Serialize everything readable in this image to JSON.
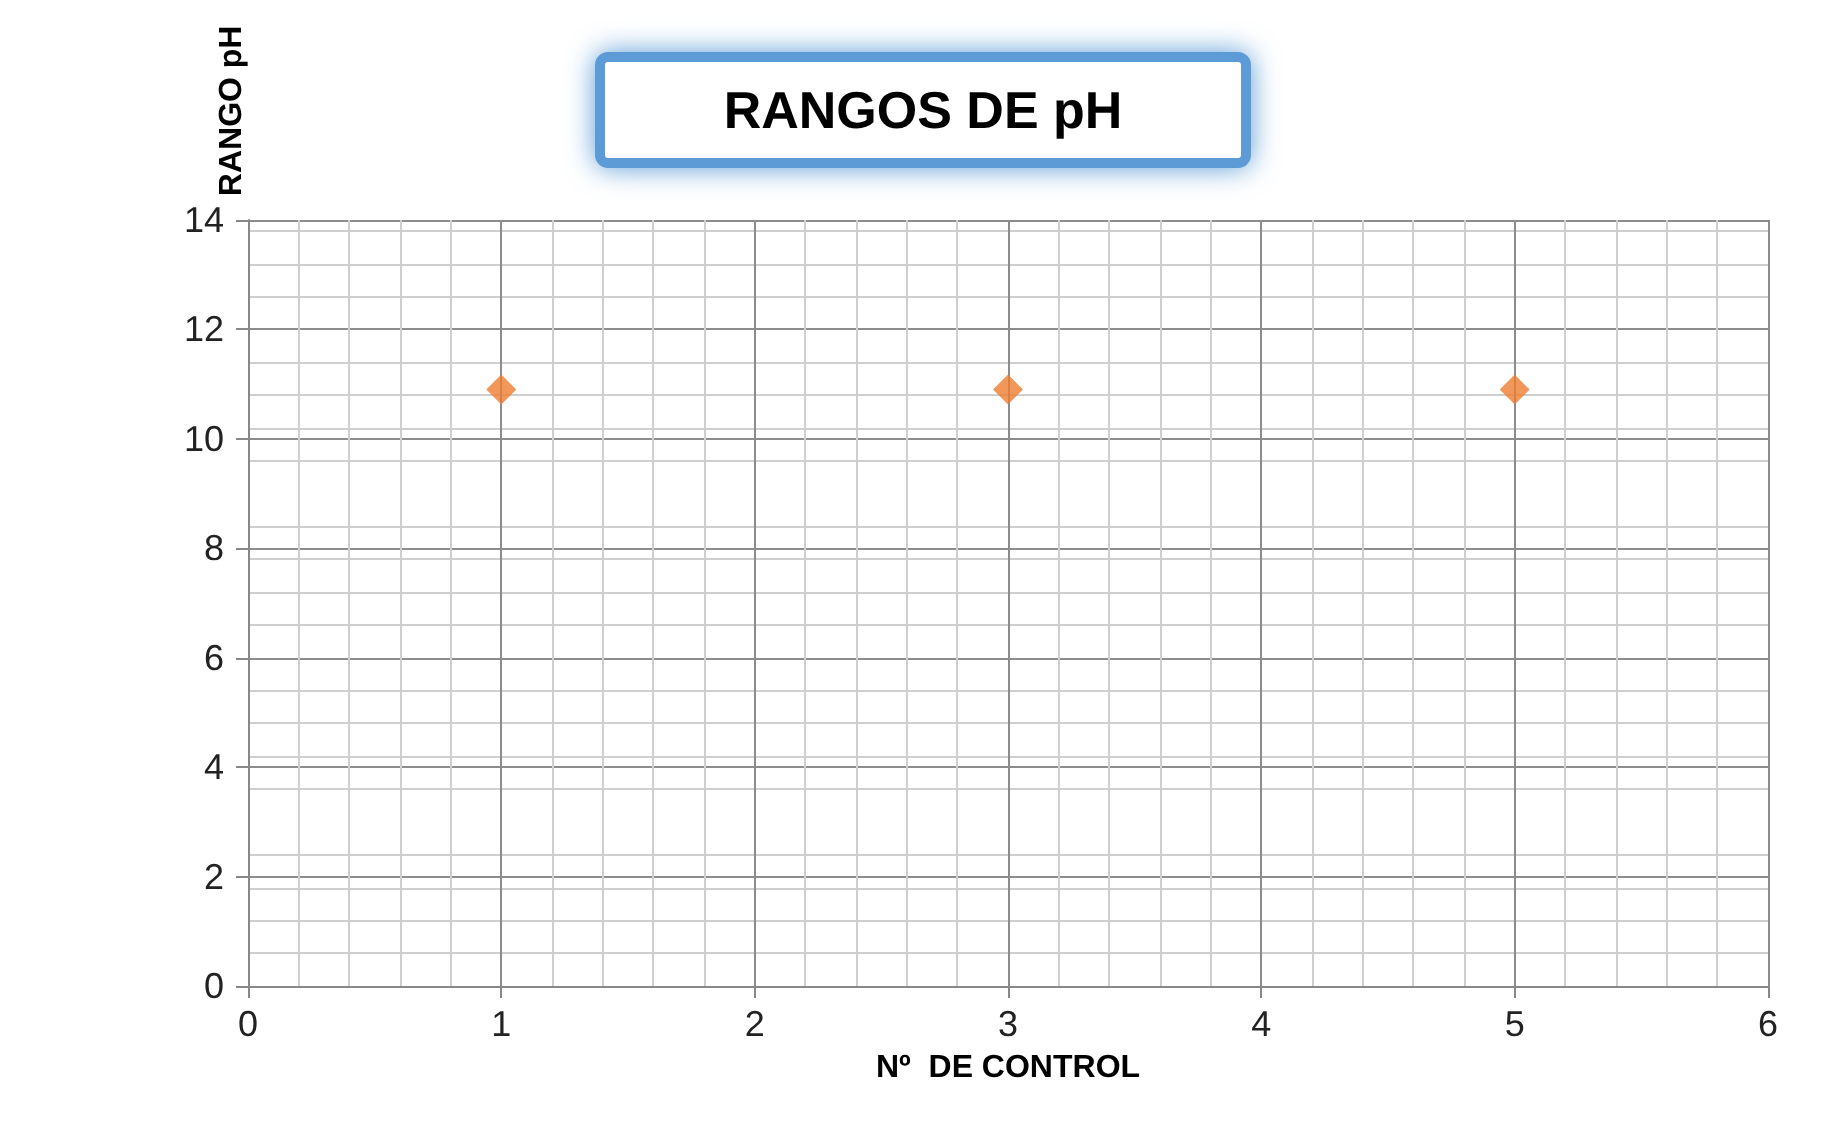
{
  "chart_data": {
    "type": "scatter",
    "title": "RANGOS DE pH",
    "xlabel": "Nº  DE CONTROL",
    "ylabel": "RANGO pH",
    "x": [
      1,
      3,
      5
    ],
    "series": [
      {
        "color": "#ed7d31",
        "values": [
          10.9,
          10.9,
          10.9
        ]
      }
    ],
    "xlim": [
      0,
      6
    ],
    "xticks": [
      0,
      1,
      2,
      3,
      4,
      5,
      6
    ],
    "ylim": [
      0,
      14
    ],
    "yticks": [
      0,
      2,
      4,
      6,
      8,
      10,
      12,
      14
    ],
    "grid": true,
    "marker": "diamond"
  }
}
